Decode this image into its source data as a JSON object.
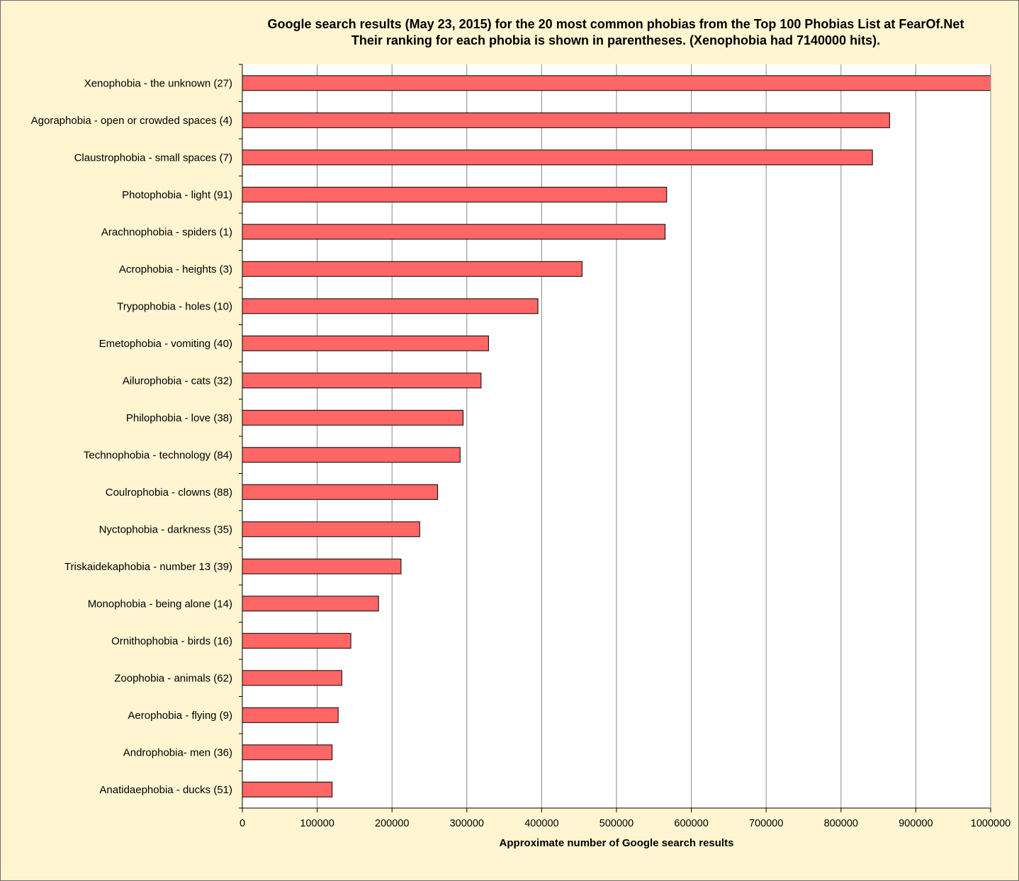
{
  "chart_data": {
    "type": "bar",
    "orientation": "horizontal",
    "title_lines": [
      "Google search results (May 23, 2015) for the 20 most common phobias from the Top 100 Phobias List at FearOf.Net",
      "Their ranking for each phobia is shown in parentheses. (Xenophobia had 7140000 hits)."
    ],
    "xlabel": "Approximate number of Google search results",
    "ylabel": "",
    "xlim": [
      0,
      1000000
    ],
    "xticks": [
      "0",
      "100000",
      "200000",
      "300000",
      "400000",
      "500000",
      "600000",
      "700000",
      "800000",
      "900000",
      "1000000"
    ],
    "grid": "vertical",
    "bar_color": "#ff6666",
    "plot_background": "#ffffff",
    "page_background": "#fff5d1",
    "categories": [
      "Xenophobia - the unknown (27)",
      "Agoraphobia - open or crowded spaces (4)",
      "Claustrophobia - small spaces (7)",
      "Photophobia - light (91)",
      "Arachnophobia - spiders (1)",
      "Acrophobia - heights (3)",
      "Trypophobia - holes (10)",
      "Emetophobia - vomiting (40)",
      "Ailurophobia - cats (32)",
      "Philophobia - love (38)",
      "Technophobia - technology (84)",
      "Coulrophobia - clowns (88)",
      "Nyctophobia - darkness (35)",
      "Triskaidekaphobia - number 13 (39)",
      "Monophobia - being alone (14)",
      "Ornithophobia - birds (16)",
      "Zoophobia - animals (62)",
      "Aerophobia - flying (9)",
      "Androphobia- men (36)",
      "Anatidaephobia - ducks (51)"
    ],
    "values": [
      1000000,
      865000,
      842000,
      567000,
      565000,
      454000,
      395000,
      329000,
      319000,
      295000,
      291000,
      261000,
      237000,
      212000,
      182000,
      145000,
      133000,
      128000,
      120000,
      120000
    ]
  }
}
